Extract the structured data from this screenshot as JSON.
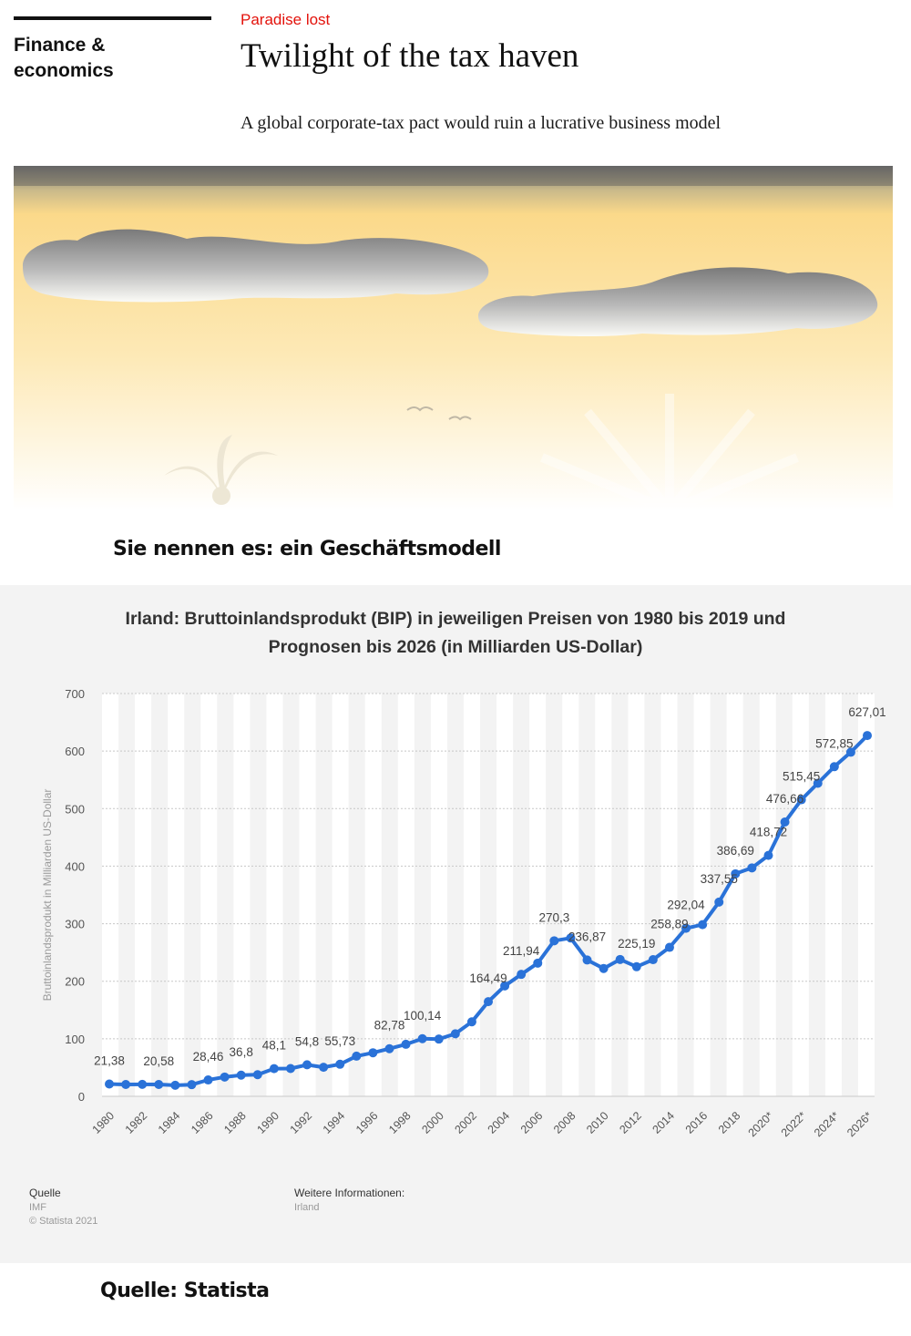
{
  "article": {
    "section_line1": "Finance &",
    "section_line2": "economics",
    "kicker": "Paradise lost",
    "headline": "Twilight of the tax haven",
    "subhead": "A global corporate-tax pact would ruin a lucrative business model"
  },
  "caption_top": "Sie nennen es: ein Geschäftsmodell",
  "caption_bottom": "Quelle: Statista",
  "colors": {
    "accent_red": "#e3120b",
    "line_blue": "#2a72d8",
    "sky_yellow": "#fbd98a",
    "panel_bg": "#f3f3f3"
  },
  "footer": {
    "source_label": "Quelle",
    "source_value": "IMF",
    "copyright": "© Statista 2021",
    "info_label": "Weitere Informationen:",
    "info_value": "Irland"
  },
  "chart_data": {
    "type": "line",
    "title_line1": "Irland: Bruttoinlandsprodukt (BIP) in jeweiligen Preisen von 1980 bis 2019 und",
    "title_line2": "Prognosen bis 2026 (in Milliarden US-Dollar)",
    "ylabel": "Bruttoinlandsprodukt in Milliarden US-Dollar",
    "xlabel": "",
    "ylim": [
      0,
      700
    ],
    "yticks": [
      0,
      100,
      200,
      300,
      400,
      500,
      600,
      700
    ],
    "xtick_labels": [
      "1980",
      "1982",
      "1984",
      "1986",
      "1988",
      "1990",
      "1992",
      "1994",
      "1996",
      "1998",
      "2000",
      "2002",
      "2004",
      "2006",
      "2008",
      "2010",
      "2012",
      "2014",
      "2016",
      "2018",
      "2020*",
      "2022*",
      "2024*",
      "2026*"
    ],
    "x": [
      1980,
      1981,
      1982,
      1983,
      1984,
      1985,
      1986,
      1987,
      1988,
      1989,
      1990,
      1991,
      1992,
      1993,
      1994,
      1995,
      1996,
      1997,
      1998,
      1999,
      2000,
      2001,
      2002,
      2003,
      2004,
      2005,
      2006,
      2007,
      2008,
      2009,
      2010,
      2011,
      2012,
      2013,
      2014,
      2015,
      2016,
      2017,
      2018,
      2019,
      2020,
      2021,
      2022,
      2023,
      2024,
      2025,
      2026
    ],
    "values": [
      21.38,
      20.6,
      20.8,
      20.58,
      19.2,
      20.3,
      28.46,
      33.5,
      36.8,
      37.6,
      48.1,
      48.3,
      54.8,
      50.5,
      55.73,
      69.8,
      75.7,
      82.78,
      90.4,
      100.14,
      99.5,
      108.7,
      129.5,
      164.49,
      191.9,
      211.94,
      231.5,
      270.3,
      275.1,
      236.87,
      222.2,
      237.8,
      225.19,
      237.5,
      258.89,
      292.04,
      298.3,
      337.55,
      386.69,
      397.0,
      418.72,
      476.66,
      515.45,
      544.0,
      572.85,
      598.0,
      627.01
    ],
    "data_labels": [
      {
        "x": 1980,
        "text": "21,38"
      },
      {
        "x": 1983,
        "text": "20,58"
      },
      {
        "x": 1986,
        "text": "28,46"
      },
      {
        "x": 1988,
        "text": "36,8"
      },
      {
        "x": 1990,
        "text": "48,1"
      },
      {
        "x": 1992,
        "text": "54,8"
      },
      {
        "x": 1994,
        "text": "55,73"
      },
      {
        "x": 1997,
        "text": "82,78"
      },
      {
        "x": 1999,
        "text": "100,14"
      },
      {
        "x": 2003,
        "text": "164,49"
      },
      {
        "x": 2005,
        "text": "211,94"
      },
      {
        "x": 2007,
        "text": "270,3"
      },
      {
        "x": 2009,
        "text": "236,87"
      },
      {
        "x": 2012,
        "text": "225,19"
      },
      {
        "x": 2014,
        "text": "258,89"
      },
      {
        "x": 2015,
        "text": "292,04"
      },
      {
        "x": 2017,
        "text": "337,55"
      },
      {
        "x": 2018,
        "text": "386,69"
      },
      {
        "x": 2020,
        "text": "418,72"
      },
      {
        "x": 2021,
        "text": "476,66"
      },
      {
        "x": 2022,
        "text": "515,45"
      },
      {
        "x": 2024,
        "text": "572,85"
      },
      {
        "x": 2026,
        "text": "627,01"
      }
    ],
    "grid": true,
    "legend": "none"
  }
}
